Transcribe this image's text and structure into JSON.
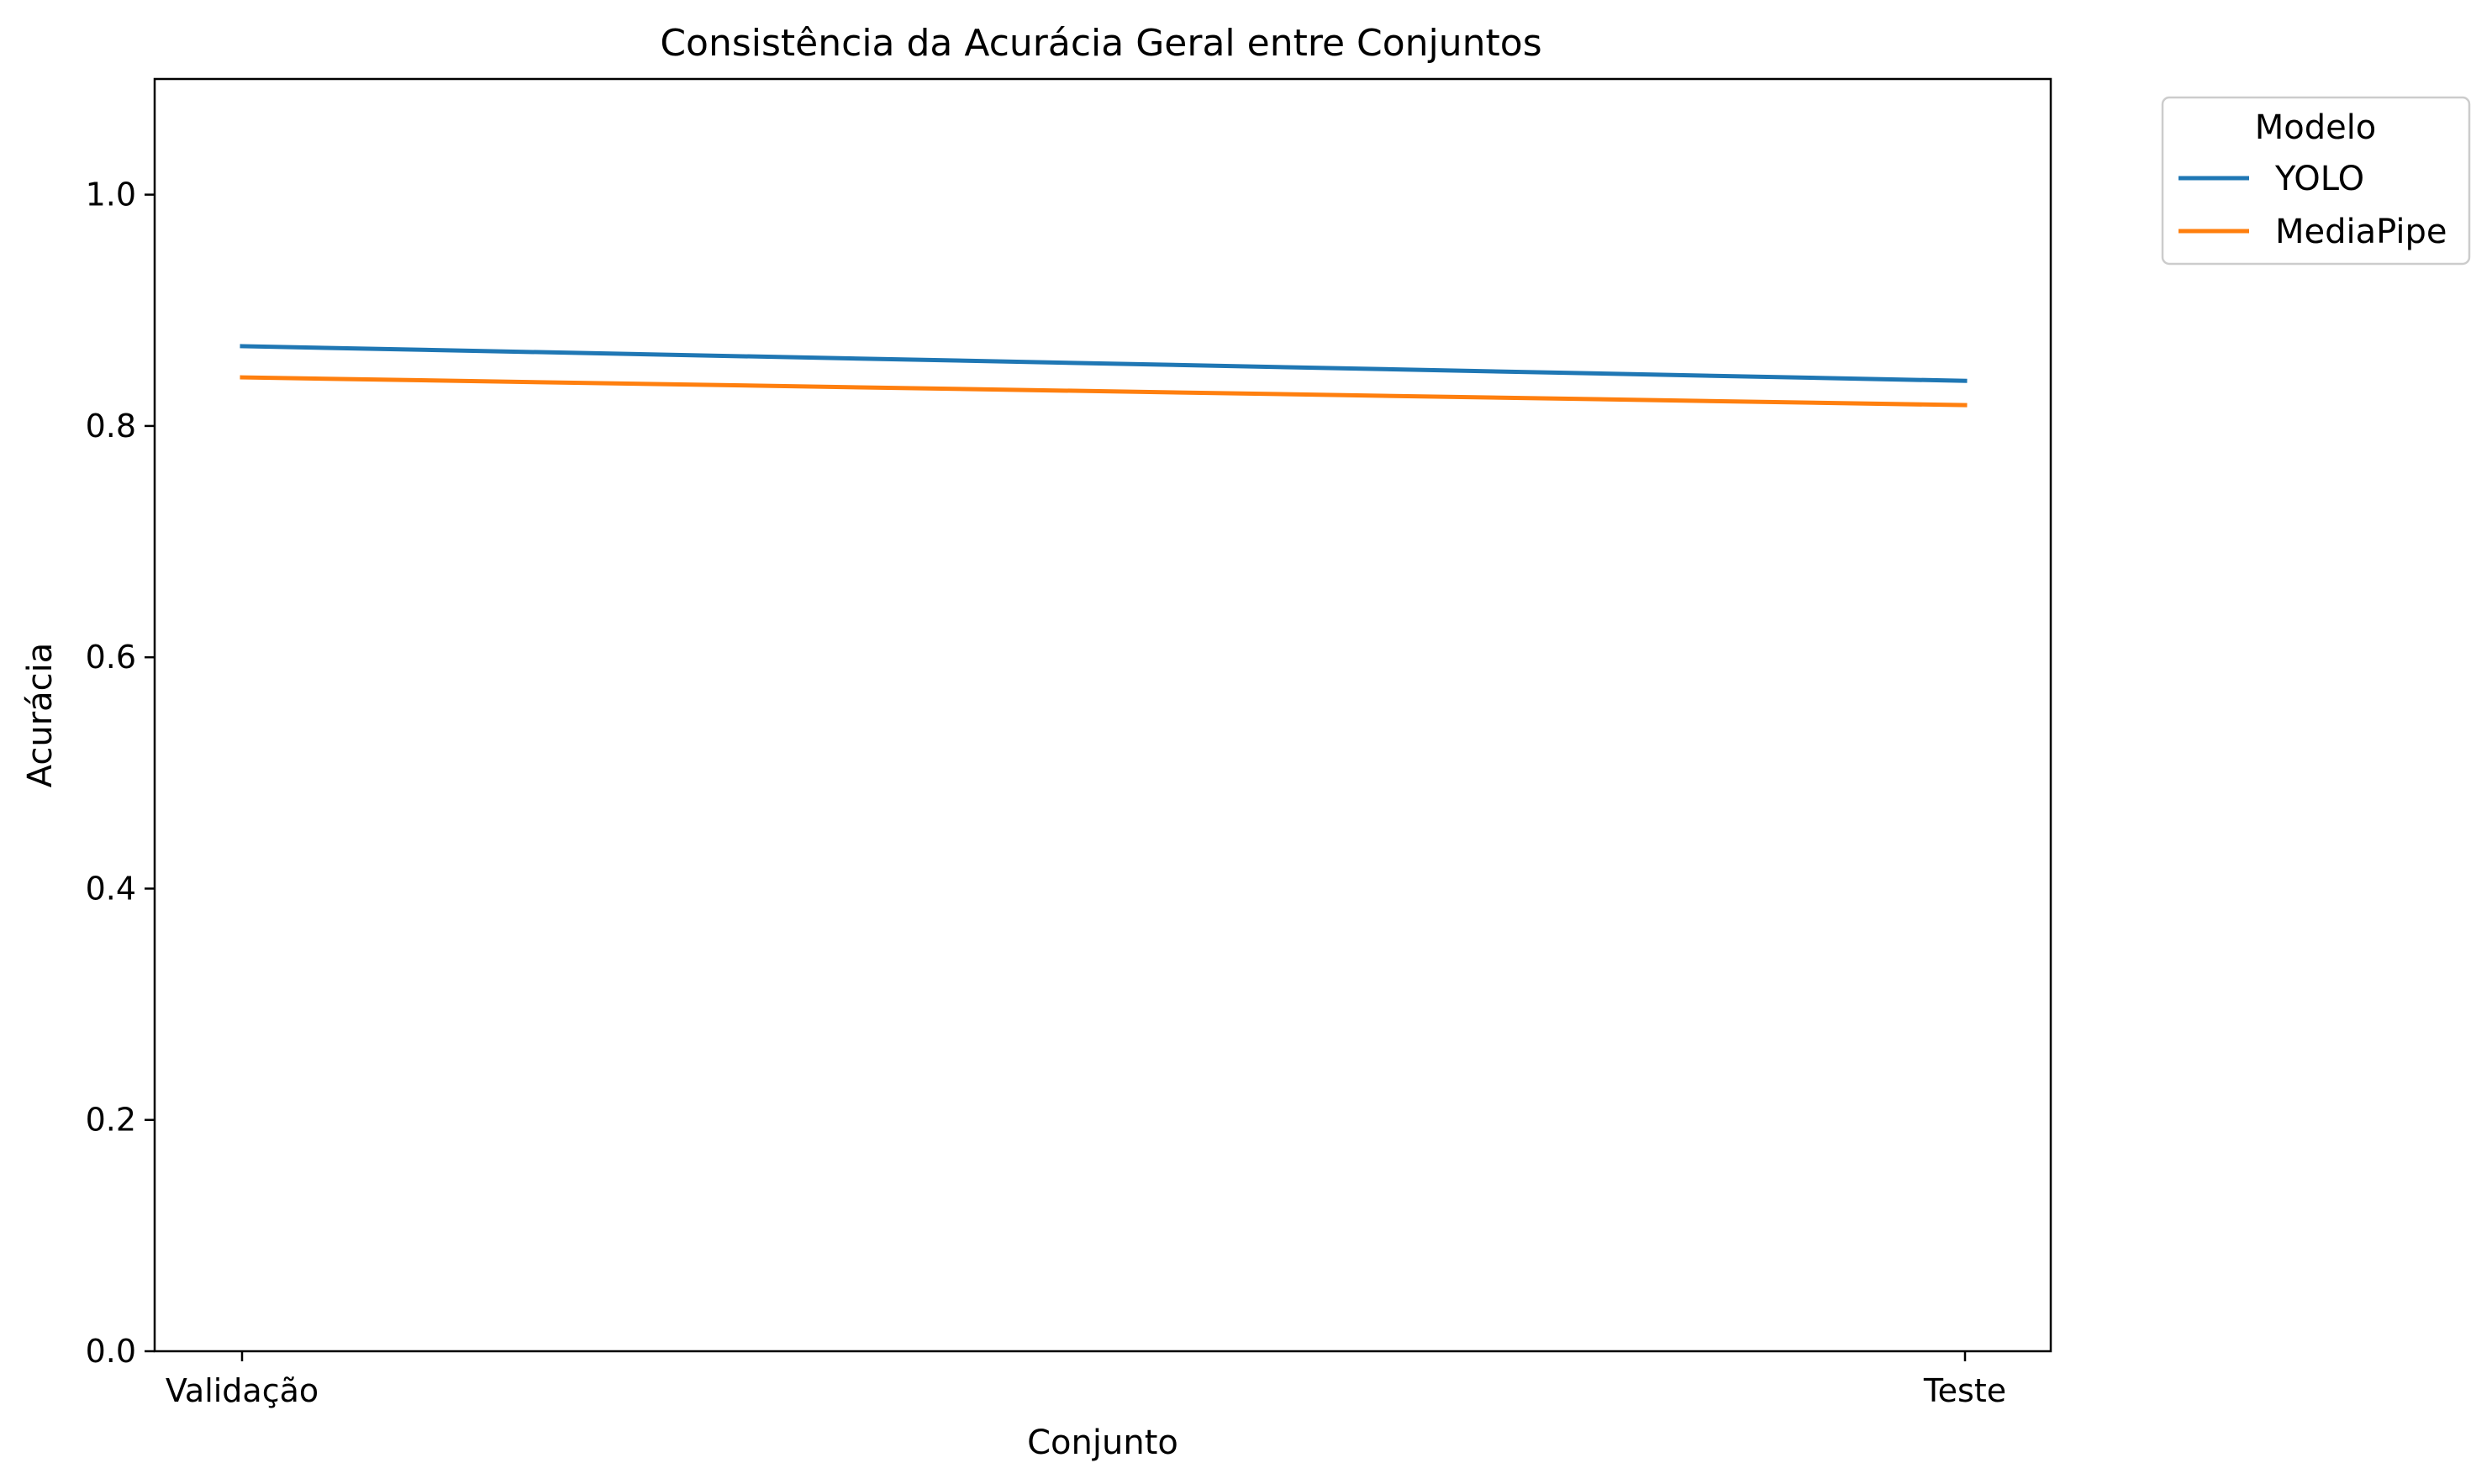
{
  "chart_data": {
    "type": "line",
    "title": "Consistência da Acurácia Geral entre Conjuntos",
    "xlabel": "Conjunto",
    "ylabel": "Acurácia",
    "categories": [
      "Validação",
      "Teste"
    ],
    "ylim": [
      0,
      1.1
    ],
    "yticks": [
      0.0,
      0.2,
      0.4,
      0.6,
      0.8,
      1.0
    ],
    "ytick_labels": [
      "0.0",
      "0.2",
      "0.4",
      "0.6",
      "0.8",
      "1.0"
    ],
    "grid": false,
    "legend": {
      "title": "Modelo",
      "placement": "outside-top-right"
    },
    "series": [
      {
        "name": "YOLO",
        "color": "#1f77b4",
        "values": [
          0.869,
          0.839
        ]
      },
      {
        "name": "MediaPipe",
        "color": "#ff7f0e",
        "values": [
          0.842,
          0.818
        ]
      }
    ]
  }
}
